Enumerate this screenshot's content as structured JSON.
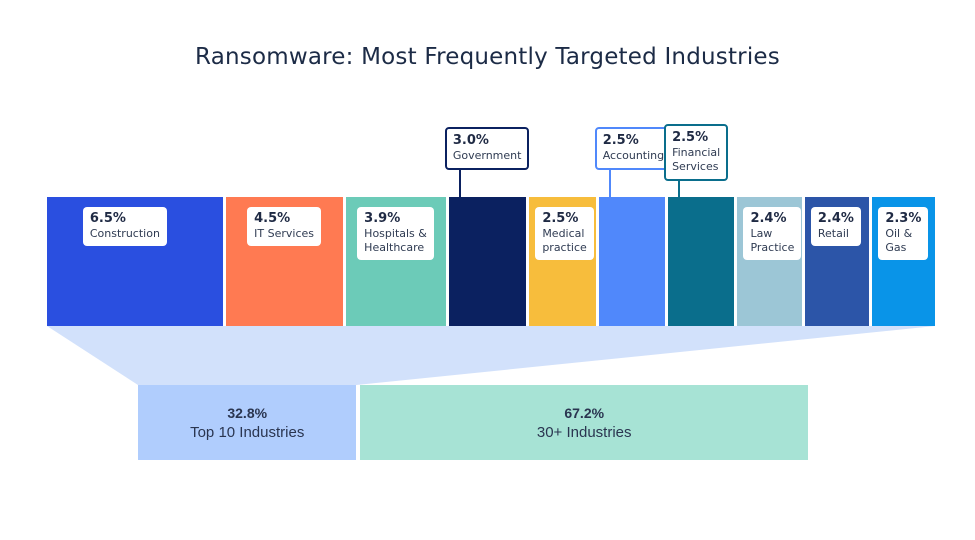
{
  "chart_data": {
    "type": "bar",
    "subtype": "marimekko-width-proportional",
    "title": "Ransomware: Most Frequently Targeted Industries",
    "unit": "%",
    "categories": [
      "Construction",
      "IT Services",
      "Hospitals & Healthcare",
      "Government",
      "Medical practice",
      "Accounting",
      "Financial Services",
      "Law Practice",
      "Retail",
      "Oil & Gas"
    ],
    "values": [
      6.5,
      4.5,
      3.9,
      3.0,
      2.5,
      2.5,
      2.5,
      2.4,
      2.4,
      2.3
    ],
    "labels": [
      "6.5%",
      "4.5%",
      "3.9%",
      "3.0%",
      "2.5%",
      "2.5%",
      "2.5%",
      "2.4%",
      "2.4%",
      "2.3%"
    ],
    "label_lines": [
      [
        "Construction"
      ],
      [
        "IT Services"
      ],
      [
        "Hospitals &",
        "Healthcare"
      ],
      [
        "Government"
      ],
      [
        "Medical",
        "practice"
      ],
      [
        "Accounting"
      ],
      [
        "Financial",
        "Services"
      ],
      [
        "Law",
        "Practice"
      ],
      [
        "Retail"
      ],
      [
        "Oil &",
        "Gas"
      ]
    ],
    "label_style": [
      "inside",
      "inside",
      "inside",
      "callout",
      "inside",
      "callout",
      "callout",
      "inside",
      "inside",
      "inside"
    ],
    "colors": [
      "#2a4fe0",
      "#ff7a52",
      "#6ccbb8",
      "#0b2160",
      "#f7bd3c",
      "#5088fb",
      "#0a6e8c",
      "#9cc6d6",
      "#2c55a8",
      "#0994e8"
    ],
    "summary": [
      {
        "value": 32.8,
        "label": "32.8%",
        "name": "Top 10 Industries",
        "color": "#b0cdfd"
      },
      {
        "value": 67.2,
        "label": "67.2%",
        "name": "30+ Industries",
        "color": "#a7e3d5"
      }
    ],
    "funnel_color": "#d2e1fb",
    "legend": "none",
    "grid": false
  }
}
